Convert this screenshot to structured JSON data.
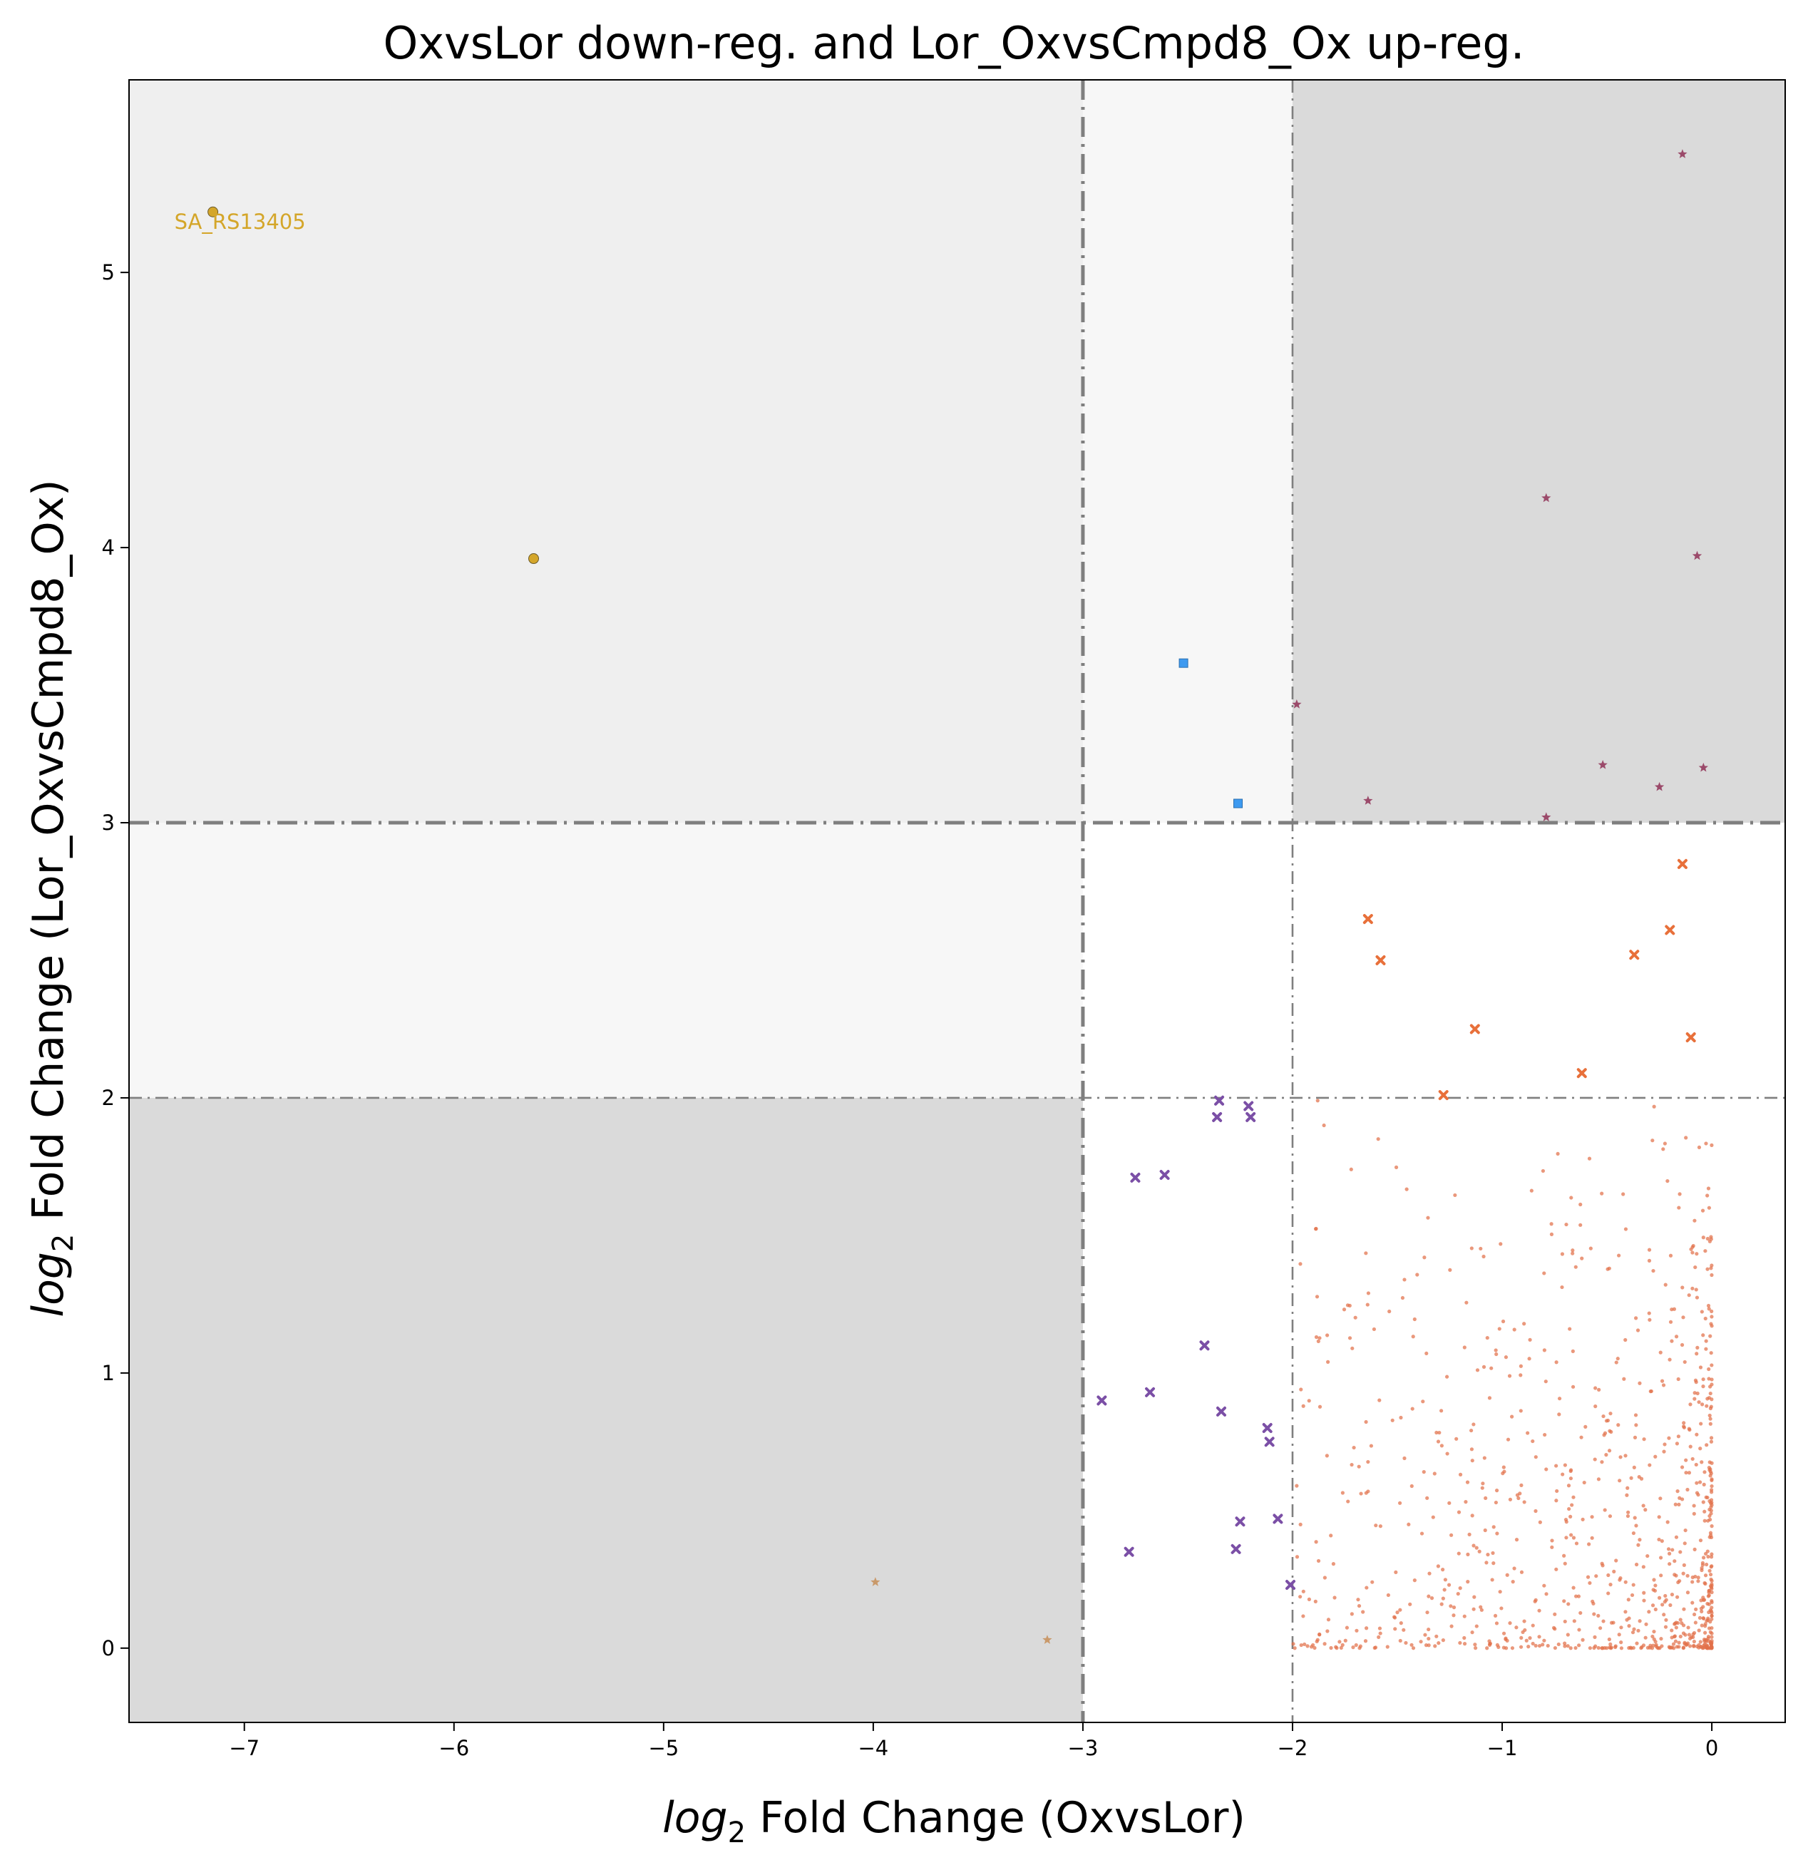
{
  "chart_data": {
    "type": "scatter",
    "title": "OxvsLor down-reg. and Lor_OxvsCmpd8_Ox up-reg.",
    "xlabel": {
      "math": "log",
      "sub": "2",
      "rest": " Fold Change (OxvsLor)"
    },
    "ylabel": {
      "math": "log",
      "sub": "2",
      "rest": " Fold Change (Lor_OxvsCmpd8_Ox)"
    },
    "xlim": [
      -7.55,
      0.35
    ],
    "ylim": [
      -0.27,
      5.7
    ],
    "xticks": [
      -7,
      -6,
      -5,
      -4,
      -3,
      -2,
      -1,
      0
    ],
    "yticks": [
      0,
      1,
      2,
      3,
      4,
      5
    ],
    "xtick_labels": [
      "−7",
      "−6",
      "−5",
      "−4",
      "−3",
      "−2",
      "−1",
      "0"
    ],
    "ytick_labels": [
      "0",
      "1",
      "2",
      "3",
      "4",
      "5"
    ],
    "grid": false,
    "legend": "none",
    "thresholds": {
      "x": [
        {
          "value": -3,
          "style": "dashdot",
          "weight": "bold"
        },
        {
          "value": -2,
          "style": "dashdot",
          "weight": "thin"
        }
      ],
      "y": [
        {
          "value": 3,
          "style": "dashdot",
          "weight": "bold"
        },
        {
          "value": 2,
          "style": "dashdot",
          "weight": "thin"
        }
      ]
    },
    "regions": [
      {
        "x": [
          -7.55,
          -3
        ],
        "y": [
          3,
          5.7
        ],
        "color": "#efefef"
      },
      {
        "x": [
          -3,
          -2
        ],
        "y": [
          3,
          5.7
        ],
        "color": "#f7f7f7"
      },
      {
        "x": [
          -2,
          0.35
        ],
        "y": [
          3,
          5.7
        ],
        "color": "#dadada"
      },
      {
        "x": [
          -7.55,
          -3
        ],
        "y": [
          2,
          3
        ],
        "color": "#f7f7f7"
      },
      {
        "x": [
          -7.55,
          -3
        ],
        "y": [
          -0.27,
          2
        ],
        "color": "#dadada"
      }
    ],
    "series": [
      {
        "marker": "circle",
        "color": "#d4a62a",
        "points": [
          [
            -7.15,
            5.22
          ],
          [
            -5.62,
            3.96
          ]
        ]
      },
      {
        "marker": "square",
        "color": "#3e9af0",
        "points": [
          [
            -2.52,
            3.58
          ],
          [
            -2.26,
            3.07
          ]
        ]
      },
      {
        "marker": "star",
        "color": "#9b4a6a",
        "points": [
          [
            -0.14,
            5.43
          ],
          [
            -0.79,
            4.18
          ],
          [
            -0.07,
            3.97
          ],
          [
            -1.98,
            3.43
          ],
          [
            -0.52,
            3.21
          ],
          [
            -0.04,
            3.2
          ],
          [
            -0.25,
            3.13
          ],
          [
            -1.64,
            3.08
          ],
          [
            -0.79,
            3.02
          ]
        ]
      },
      {
        "marker": "x",
        "color": "#e8703a",
        "points": [
          [
            -0.14,
            2.85
          ],
          [
            -1.64,
            2.65
          ],
          [
            -0.2,
            2.61
          ],
          [
            -0.37,
            2.52
          ],
          [
            -1.58,
            2.5
          ],
          [
            -1.13,
            2.25
          ],
          [
            -0.1,
            2.22
          ],
          [
            -0.62,
            2.09
          ],
          [
            -1.28,
            2.01
          ]
        ]
      },
      {
        "marker": "x",
        "color": "#7b4fa6",
        "points": [
          [
            -2.35,
            1.99
          ],
          [
            -2.21,
            1.97
          ],
          [
            -2.36,
            1.93
          ],
          [
            -2.2,
            1.93
          ],
          [
            -2.75,
            1.71
          ],
          [
            -2.61,
            1.72
          ],
          [
            -2.42,
            1.1
          ],
          [
            -2.91,
            0.9
          ],
          [
            -2.68,
            0.93
          ],
          [
            -2.34,
            0.86
          ],
          [
            -2.12,
            0.8
          ],
          [
            -2.11,
            0.75
          ],
          [
            -2.07,
            0.47
          ],
          [
            -2.25,
            0.46
          ],
          [
            -2.27,
            0.36
          ],
          [
            -2.78,
            0.35
          ],
          [
            -2.01,
            0.23
          ]
        ]
      },
      {
        "marker": "star",
        "color": "#c9996a",
        "points": [
          [
            -3.99,
            0.24
          ],
          [
            -3.17,
            0.03
          ]
        ]
      },
      {
        "marker": "dot",
        "color": "#e2704a",
        "count": 900,
        "seed": 17,
        "x_range": [
          -2.0,
          0.0
        ],
        "y_range": [
          0.0,
          2.0
        ],
        "anchors": [
          [
            -1.88,
            1.99
          ],
          [
            -1.85,
            1.9
          ],
          [
            -1.96,
            0.94
          ],
          [
            -1.88,
            0.03
          ],
          [
            -1.98,
            0.59
          ],
          [
            -1.72,
            1.74
          ],
          [
            -0.06,
            1.82
          ],
          [
            -1.62,
            0.24
          ],
          [
            -1.5,
            0.13
          ]
        ]
      }
    ],
    "annotations": [
      {
        "text": "SA_RS13405",
        "x": -7.15,
        "y": 5.22,
        "color": "#d4a62a"
      }
    ]
  }
}
